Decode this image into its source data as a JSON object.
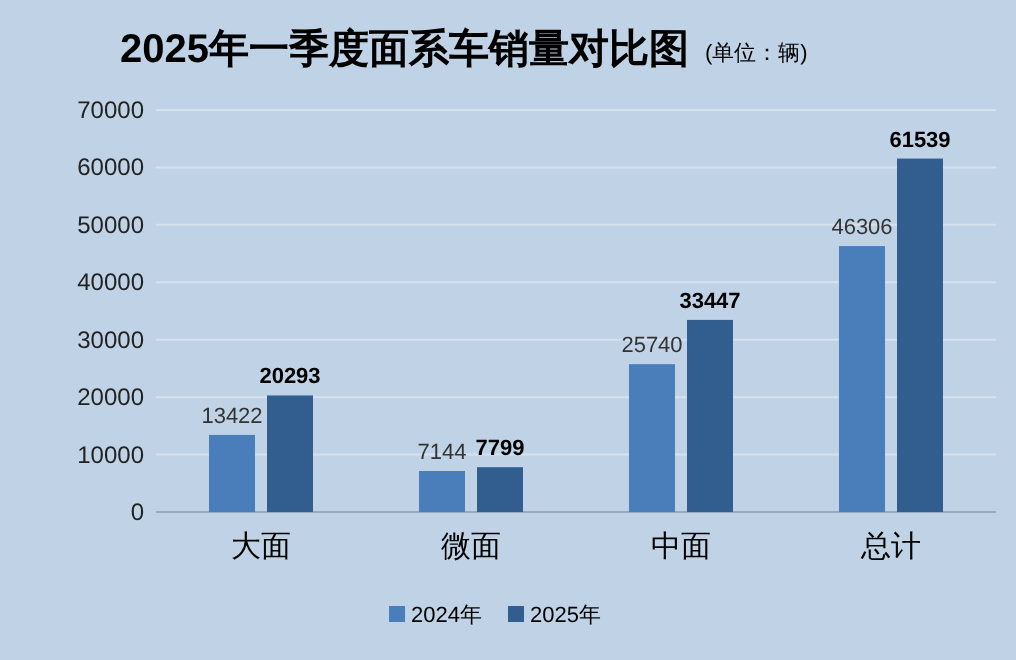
{
  "chart_data": {
    "type": "bar",
    "title": "2025年一季度面系车销量对比图",
    "subtitle": "(单位：辆)",
    "categories": [
      "大面",
      "微面",
      "中面",
      "总计"
    ],
    "series": [
      {
        "name": "2024年",
        "color": "#4a7ebb",
        "values": [
          13422,
          7144,
          25740,
          46306
        ]
      },
      {
        "name": "2025年",
        "color": "#325d8f",
        "values": [
          20293,
          7799,
          33447,
          61539
        ]
      }
    ],
    "ylim": [
      0,
      70000
    ],
    "yticks": [
      0,
      10000,
      20000,
      30000,
      40000,
      50000,
      60000,
      70000
    ],
    "grid": "y",
    "legend": "bottom",
    "data_labels": true
  }
}
